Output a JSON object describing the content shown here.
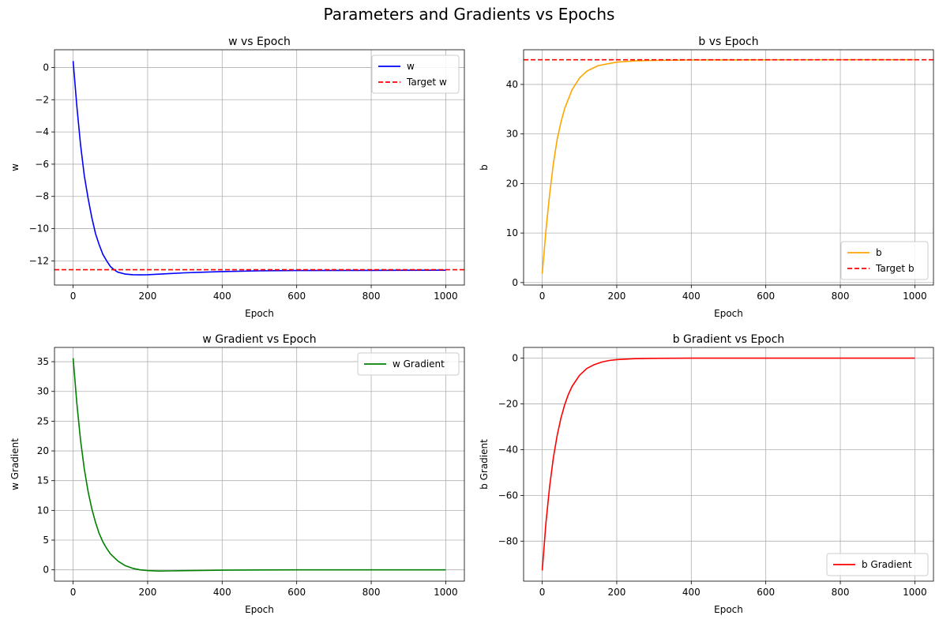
{
  "suptitle": "Parameters and Gradients vs Epochs",
  "colors": {
    "w": "#0000ff",
    "target": "#ff0000",
    "b": "#ffa500",
    "w_gradient": "#008000",
    "b_gradient": "#ff0000",
    "grid": "#b0b0b0"
  },
  "chart_data": [
    {
      "type": "line",
      "title": "w vs Epoch",
      "xlabel": "Epoch",
      "ylabel": "w",
      "xlim": [
        -50,
        1050
      ],
      "ylim": [
        -13.5,
        1.1
      ],
      "xticks": [
        0,
        200,
        400,
        600,
        800,
        1000
      ],
      "yticks": [
        0,
        -2,
        -4,
        -6,
        -8,
        -10,
        -12
      ],
      "grid": true,
      "legend": "upper right",
      "series": [
        {
          "name": "w",
          "color": "#0000ff",
          "style": "solid",
          "x": [
            0,
            10,
            20,
            30,
            40,
            50,
            60,
            70,
            80,
            90,
            100,
            110,
            120,
            140,
            160,
            180,
            200,
            250,
            300,
            400,
            500,
            600,
            800,
            1000
          ],
          "y": [
            0.4,
            -2.4,
            -4.8,
            -6.7,
            -8.1,
            -9.3,
            -10.3,
            -11.0,
            -11.6,
            -12.0,
            -12.35,
            -12.55,
            -12.7,
            -12.82,
            -12.86,
            -12.87,
            -12.86,
            -12.8,
            -12.74,
            -12.66,
            -12.62,
            -12.6,
            -12.59,
            -12.58
          ]
        },
        {
          "name": "Target w",
          "color": "#ff0000",
          "style": "dashed",
          "hline": -12.55
        }
      ]
    },
    {
      "type": "line",
      "title": "b vs Epoch",
      "xlabel": "Epoch",
      "ylabel": "b",
      "xlim": [
        -50,
        1050
      ],
      "ylim": [
        -0.5,
        47.0
      ],
      "xticks": [
        0,
        200,
        400,
        600,
        800,
        1000
      ],
      "yticks": [
        0,
        10,
        20,
        30,
        40
      ],
      "grid": true,
      "legend": "lower right",
      "series": [
        {
          "name": "b",
          "color": "#ffa500",
          "style": "solid",
          "x": [
            0,
            10,
            20,
            30,
            40,
            50,
            60,
            80,
            100,
            120,
            150,
            200,
            250,
            300,
            400,
            500,
            600,
            800,
            1000
          ],
          "y": [
            1.8,
            10.5,
            17.9,
            24.0,
            28.9,
            32.3,
            35.1,
            38.9,
            41.3,
            42.7,
            43.8,
            44.5,
            44.75,
            44.85,
            44.93,
            44.95,
            44.96,
            44.97,
            44.97
          ]
        },
        {
          "name": "Target b",
          "color": "#ff0000",
          "style": "dashed",
          "hline": 44.97
        }
      ]
    },
    {
      "type": "line",
      "title": "w Gradient vs Epoch",
      "xlabel": "Epoch",
      "ylabel": "w Gradient",
      "xlim": [
        -50,
        1050
      ],
      "ylim": [
        -1.9,
        37.4
      ],
      "xticks": [
        0,
        200,
        400,
        600,
        800,
        1000
      ],
      "yticks": [
        0,
        5,
        10,
        15,
        20,
        25,
        30,
        35
      ],
      "grid": true,
      "legend": "upper right",
      "series": [
        {
          "name": "w Gradient",
          "color": "#008000",
          "style": "solid",
          "x": [
            0,
            10,
            20,
            30,
            40,
            50,
            60,
            70,
            80,
            90,
            100,
            120,
            140,
            160,
            180,
            200,
            230,
            260,
            300,
            400,
            500,
            600,
            800,
            1000
          ],
          "y": [
            35.6,
            28.0,
            21.8,
            17.0,
            13.2,
            10.3,
            8.0,
            6.1,
            4.7,
            3.6,
            2.7,
            1.5,
            0.7,
            0.25,
            0.0,
            -0.12,
            -0.2,
            -0.18,
            -0.14,
            -0.05,
            -0.01,
            0.0,
            0.0,
            0.0
          ]
        }
      ]
    },
    {
      "type": "line",
      "title": "b Gradient vs Epoch",
      "xlabel": "Epoch",
      "ylabel": "b Gradient",
      "xlim": [
        -50,
        1050
      ],
      "ylim": [
        -97.5,
        4.7
      ],
      "xticks": [
        0,
        200,
        400,
        600,
        800,
        1000
      ],
      "yticks": [
        0,
        -20,
        -40,
        -60,
        -80
      ],
      "grid": true,
      "legend": "lower right",
      "series": [
        {
          "name": "b Gradient",
          "color": "#ff0000",
          "style": "solid",
          "x": [
            0,
            10,
            20,
            30,
            40,
            50,
            60,
            70,
            80,
            100,
            120,
            140,
            160,
            180,
            200,
            250,
            300,
            400,
            600,
            800,
            1000
          ],
          "y": [
            -92.8,
            -72.0,
            -56.0,
            -43.5,
            -33.8,
            -26.3,
            -20.5,
            -15.9,
            -12.4,
            -7.5,
            -4.5,
            -2.8,
            -1.7,
            -1.0,
            -0.6,
            -0.2,
            -0.05,
            0.0,
            0.0,
            0.0,
            0.0
          ]
        }
      ]
    }
  ]
}
